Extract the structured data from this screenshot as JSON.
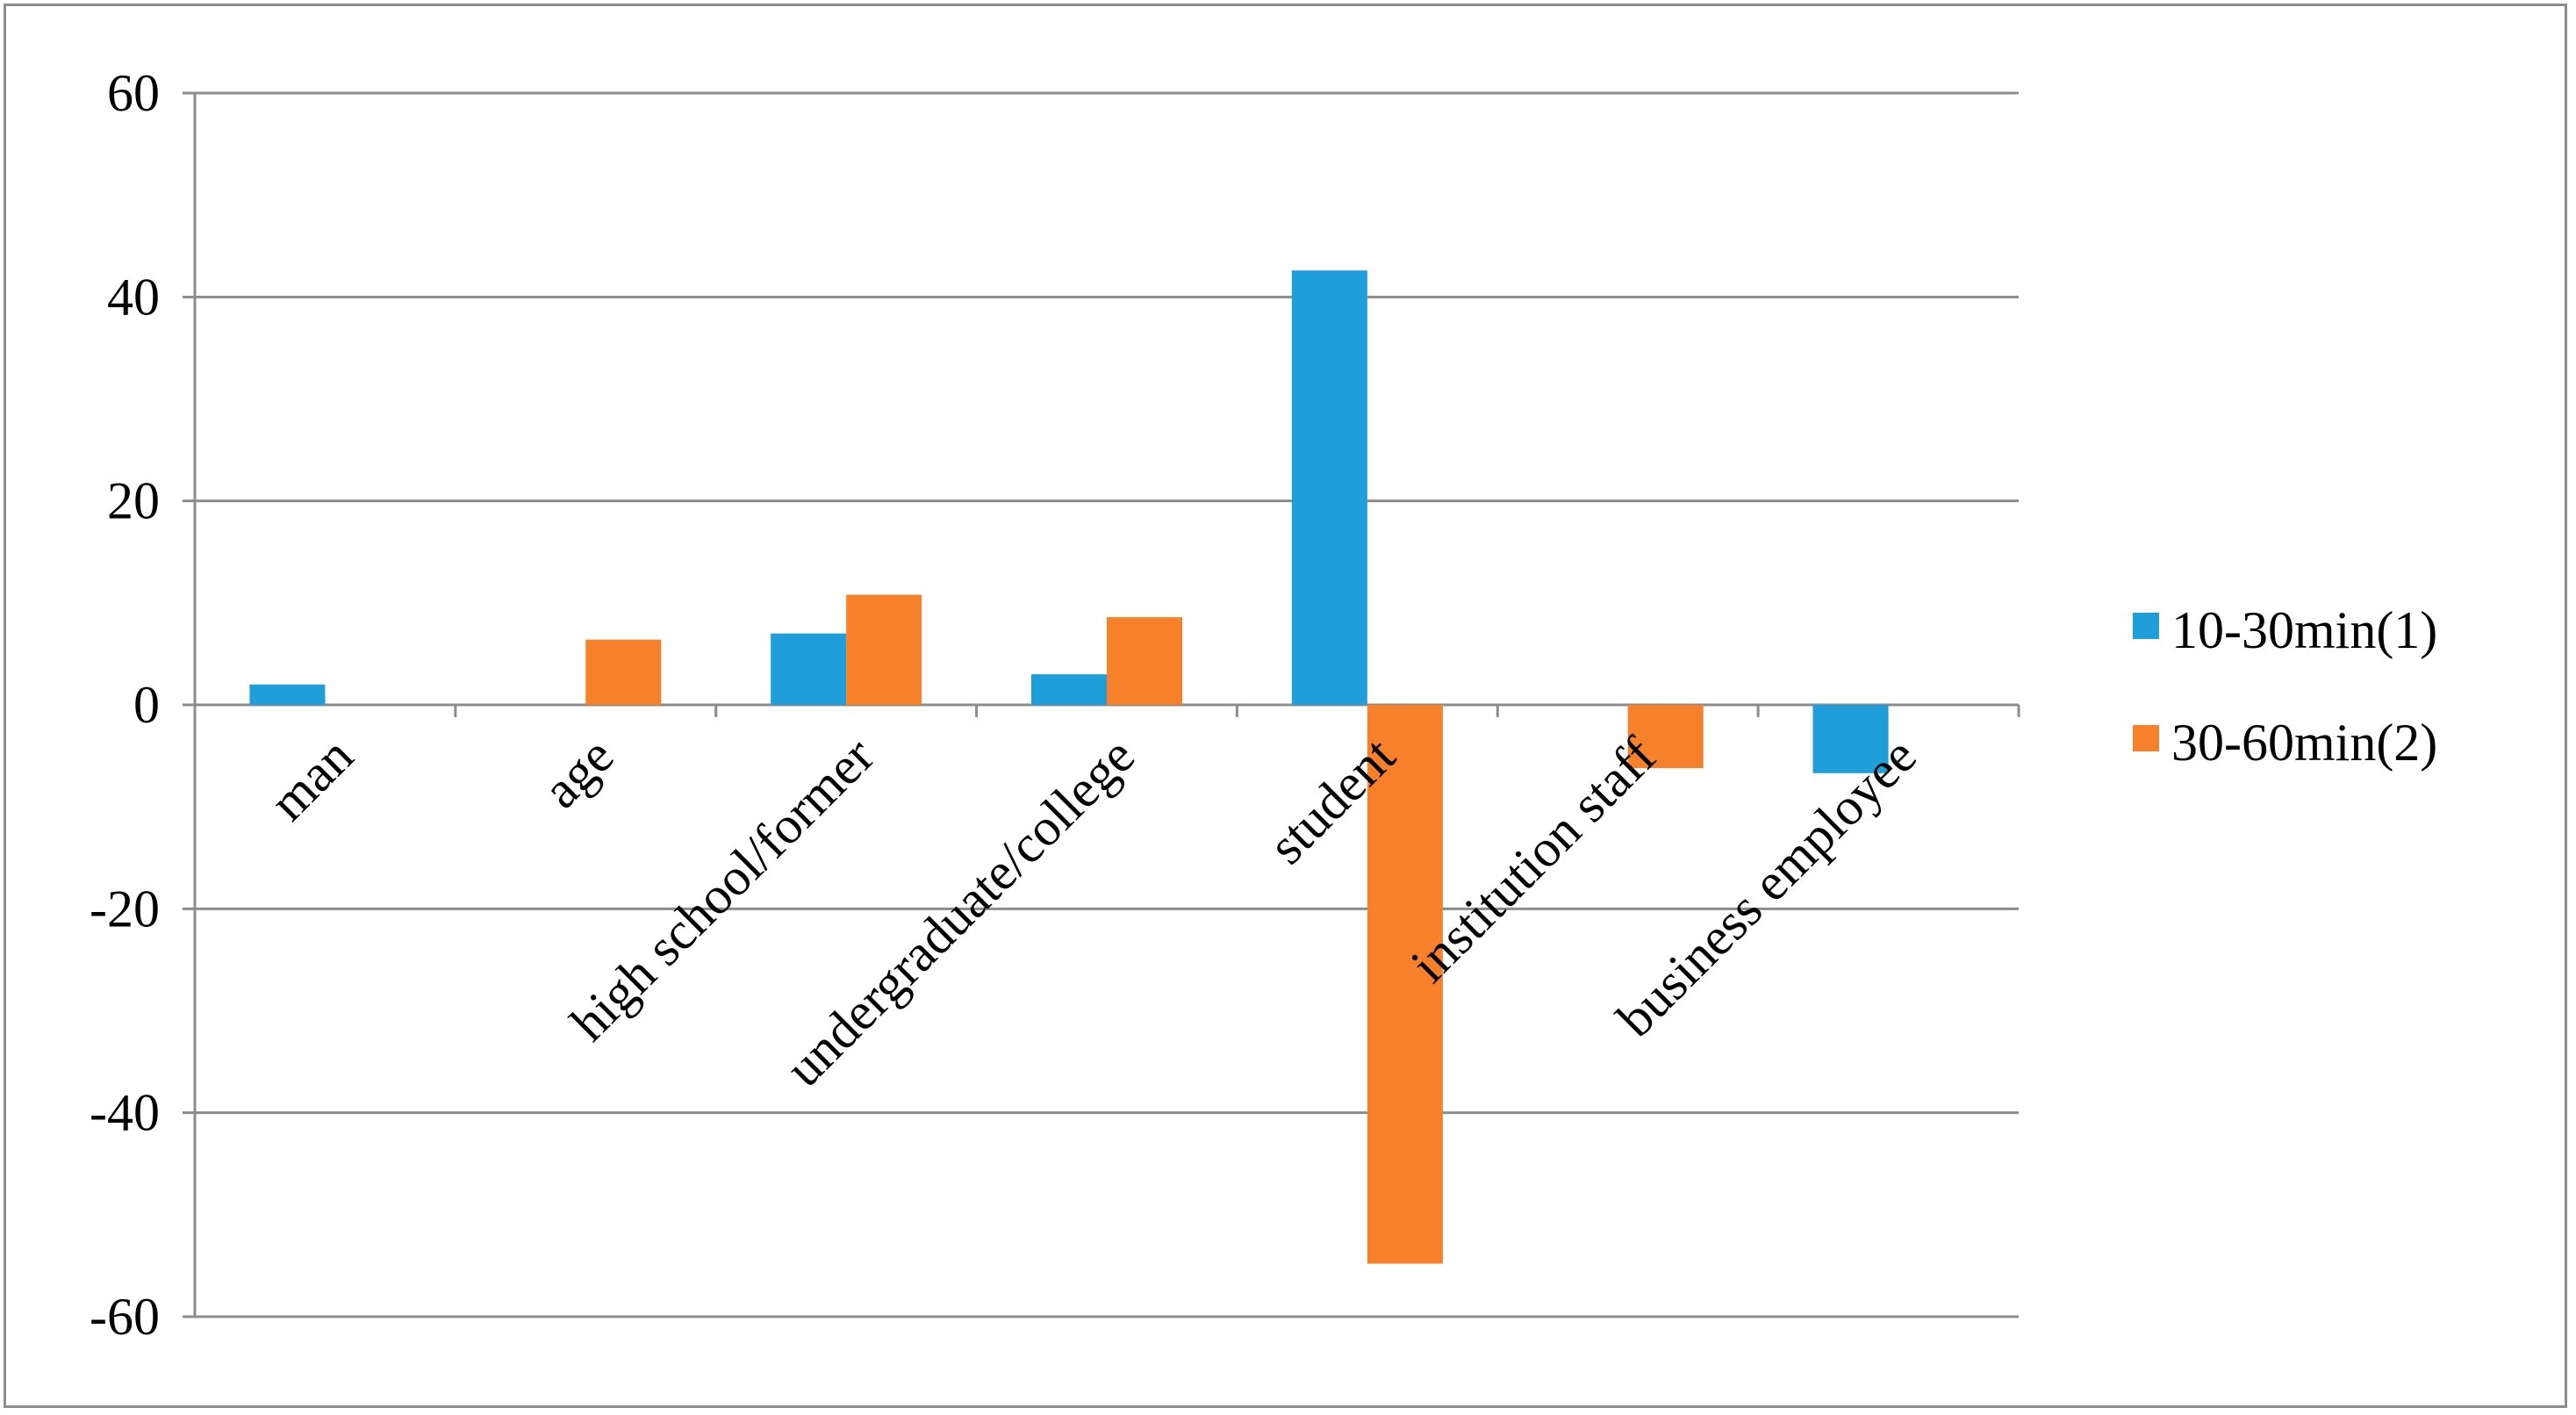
{
  "chart_data": {
    "type": "bar",
    "categories": [
      "man",
      "age",
      "high school/former",
      "undergraduate/college",
      "student",
      "institution staff",
      "business employee"
    ],
    "series": [
      {
        "name": "10-30min(1)",
        "color": "#1f9ed9",
        "values": [
          2.0,
          0,
          7.0,
          3.0,
          42.6,
          0,
          -6.7
        ]
      },
      {
        "name": "30-60min(2)",
        "color": "#f7812a",
        "values": [
          0,
          6.4,
          10.8,
          8.6,
          -54.8,
          -6.2,
          0
        ]
      }
    ],
    "ylim": [
      -60,
      60
    ],
    "yticks": [
      60,
      40,
      20,
      0,
      -20,
      -40,
      -60
    ],
    "title": "",
    "xlabel": "",
    "ylabel": "",
    "grid": true,
    "legend_position": "right"
  }
}
